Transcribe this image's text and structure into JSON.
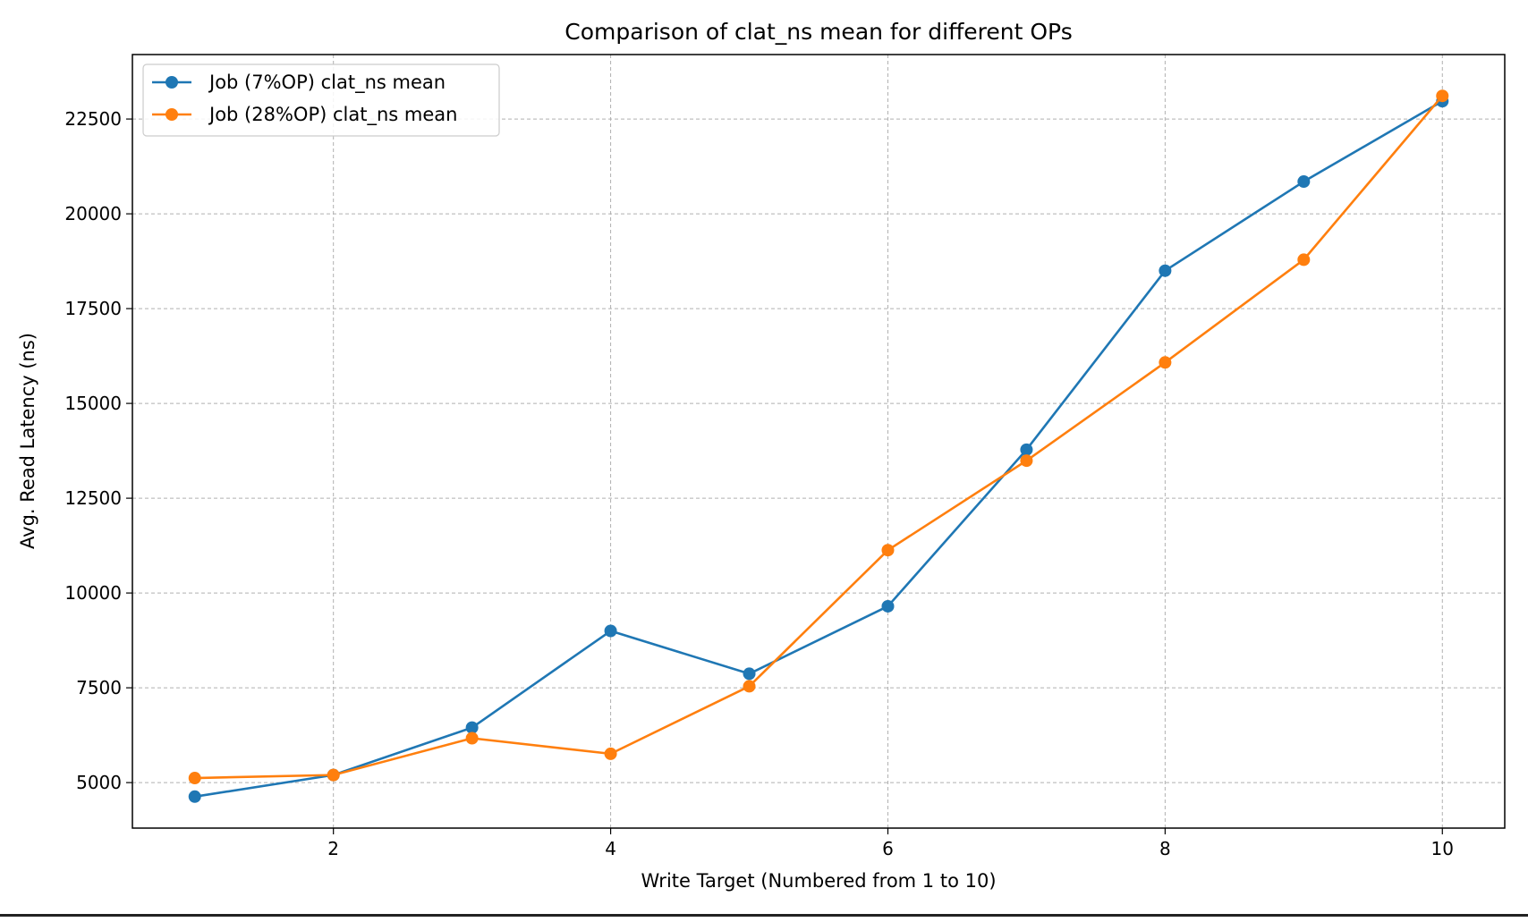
{
  "chart_data": {
    "type": "line",
    "title": "Comparison of clat_ns mean for different OPs",
    "xlabel": "Write Target (Numbered from 1 to 10)",
    "ylabel": "Avg. Read Latency (ns)",
    "x": [
      1,
      2,
      3,
      4,
      5,
      6,
      7,
      8,
      9,
      10
    ],
    "xlim": [
      0.55,
      10.45
    ],
    "ylim": [
      3800,
      24200
    ],
    "xticks": [
      2,
      4,
      6,
      8,
      10
    ],
    "yticks": [
      5000,
      7500,
      10000,
      12500,
      15000,
      17500,
      20000,
      22500
    ],
    "grid": true,
    "legend_position": "top-left",
    "series": [
      {
        "name": "Job (7%OP) clat_ns mean",
        "color": "#1f77b4",
        "marker": "circle",
        "values": [
          4630,
          5200,
          6450,
          9000,
          7870,
          9650,
          13780,
          18500,
          20850,
          22970
        ]
      },
      {
        "name": "Job (28%OP) clat_ns mean",
        "color": "#ff7f0e",
        "marker": "circle",
        "values": [
          5120,
          5200,
          6170,
          5760,
          7540,
          11130,
          13490,
          16080,
          18790,
          23110
        ]
      }
    ]
  }
}
